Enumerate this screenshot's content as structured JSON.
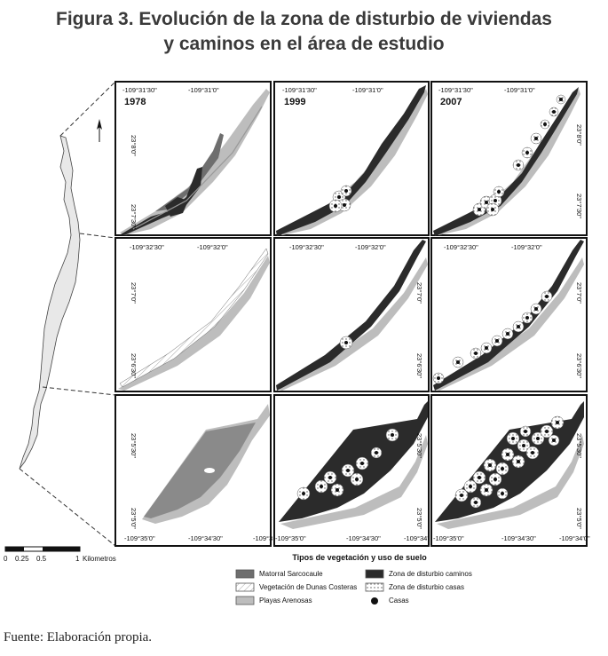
{
  "title": {
    "line1": "Figura 3. Evolución de la zona de disturbio de viviendas",
    "line2": "y caminos en el área de estudio"
  },
  "years": [
    "1978",
    "1999",
    "2007"
  ],
  "coords": {
    "row1_lon_a": "-109°31'30\"",
    "row1_lon_b": "-109°31'0\"",
    "row1_lat_a": "23°8'0\"",
    "row1_lat_b": "23°7'30\"",
    "row2_lon_a": "-109°32'30\"",
    "row2_lon_b": "-109°32'0\"",
    "row2_lat_a": "23°7'0\"",
    "row2_lat_b": "23°6'30\"",
    "row3_lon_a": "-109°35'0\"",
    "row3_lon_b": "-109°34'30\"",
    "row3_lon_c": "-109°3",
    "row3_lon_c2": "-109°34'",
    "row3_lon_d": "-109°34'0\"",
    "row3_lat_a": "23°5'30\"",
    "row3_lat_b": "23°5'0\""
  },
  "scale": {
    "ticks": [
      "0",
      "0.25",
      "0.5",
      "1"
    ],
    "unit": "Kilometros"
  },
  "legend": {
    "title": "Tipos de vegetación y uso de suelo",
    "items": [
      {
        "label": "Matorral Sarcocaule",
        "color": "#6e6e6e"
      },
      {
        "label": "Vegetación de Dunas Costeras",
        "color": "#ffffff"
      },
      {
        "label": "Playas Arenosas",
        "color": "#bdbdbd"
      },
      {
        "label": "Zona de disturbio caminos",
        "color": "#2b2b2b"
      },
      {
        "label": "Zona de disturbio casas",
        "color": "#ffffff"
      },
      {
        "label": "Casas",
        "color": "#111111"
      }
    ]
  },
  "source": "Fuente: Elaboración propia."
}
